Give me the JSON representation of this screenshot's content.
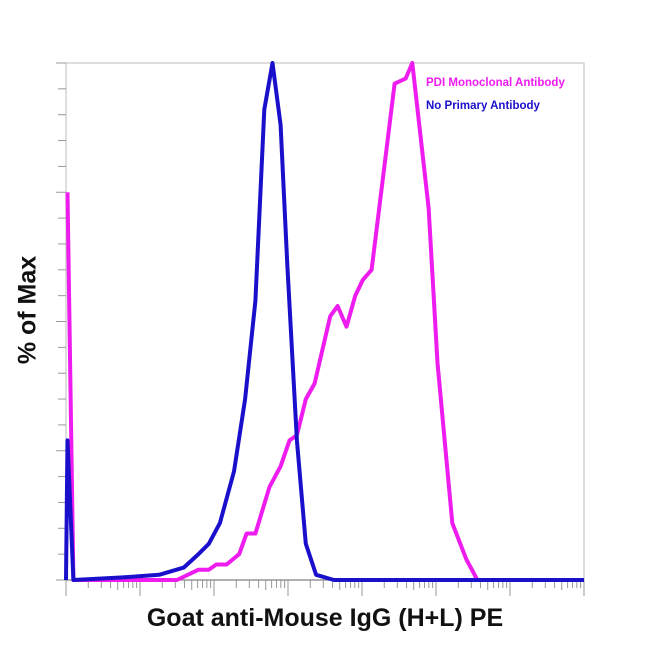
{
  "chart_data": {
    "type": "line",
    "title": "",
    "xlabel": "Goat anti-Mouse IgG (H+L) PE",
    "ylabel": "% of Max",
    "x_scale": "log (decades, unlabeled)",
    "xlim": [
      0,
      7
    ],
    "ylim": [
      0,
      100
    ],
    "grid": false,
    "legend_position": "top-right",
    "series": [
      {
        "name": "PDI Monoclonal Antibody",
        "color": "#ee1cee",
        "x": [
          0.02,
          0.1,
          1.5,
          1.79,
          1.93,
          2.03,
          2.17,
          2.34,
          2.44,
          2.56,
          2.75,
          2.9,
          3.02,
          3.12,
          3.24,
          3.36,
          3.57,
          3.67,
          3.79,
          3.91,
          4.01,
          4.13,
          4.44,
          4.59,
          4.68,
          4.9,
          5.02,
          5.22,
          5.41,
          5.56,
          7
        ],
        "y": [
          75,
          0,
          0,
          2,
          2,
          3,
          3,
          5,
          9,
          9,
          18,
          22,
          27,
          28,
          35,
          38,
          51,
          53,
          49,
          55,
          58,
          60,
          96,
          97,
          100,
          72,
          42,
          11,
          4,
          0,
          0
        ]
      },
      {
        "name": "No Primary Antibody",
        "color": "#1a10cc",
        "x": [
          0.0,
          0.02,
          0.1,
          0.77,
          1.26,
          1.59,
          1.79,
          1.93,
          2.08,
          2.27,
          2.42,
          2.56,
          2.68,
          2.79,
          2.9,
          2.99,
          3.12,
          3.24,
          3.38,
          3.62,
          7
        ],
        "y": [
          0,
          27,
          0,
          0.5,
          1,
          2.4,
          5,
          7,
          11,
          21,
          35,
          54,
          91,
          100,
          88,
          61,
          27,
          7,
          1,
          0,
          0
        ]
      }
    ]
  }
}
